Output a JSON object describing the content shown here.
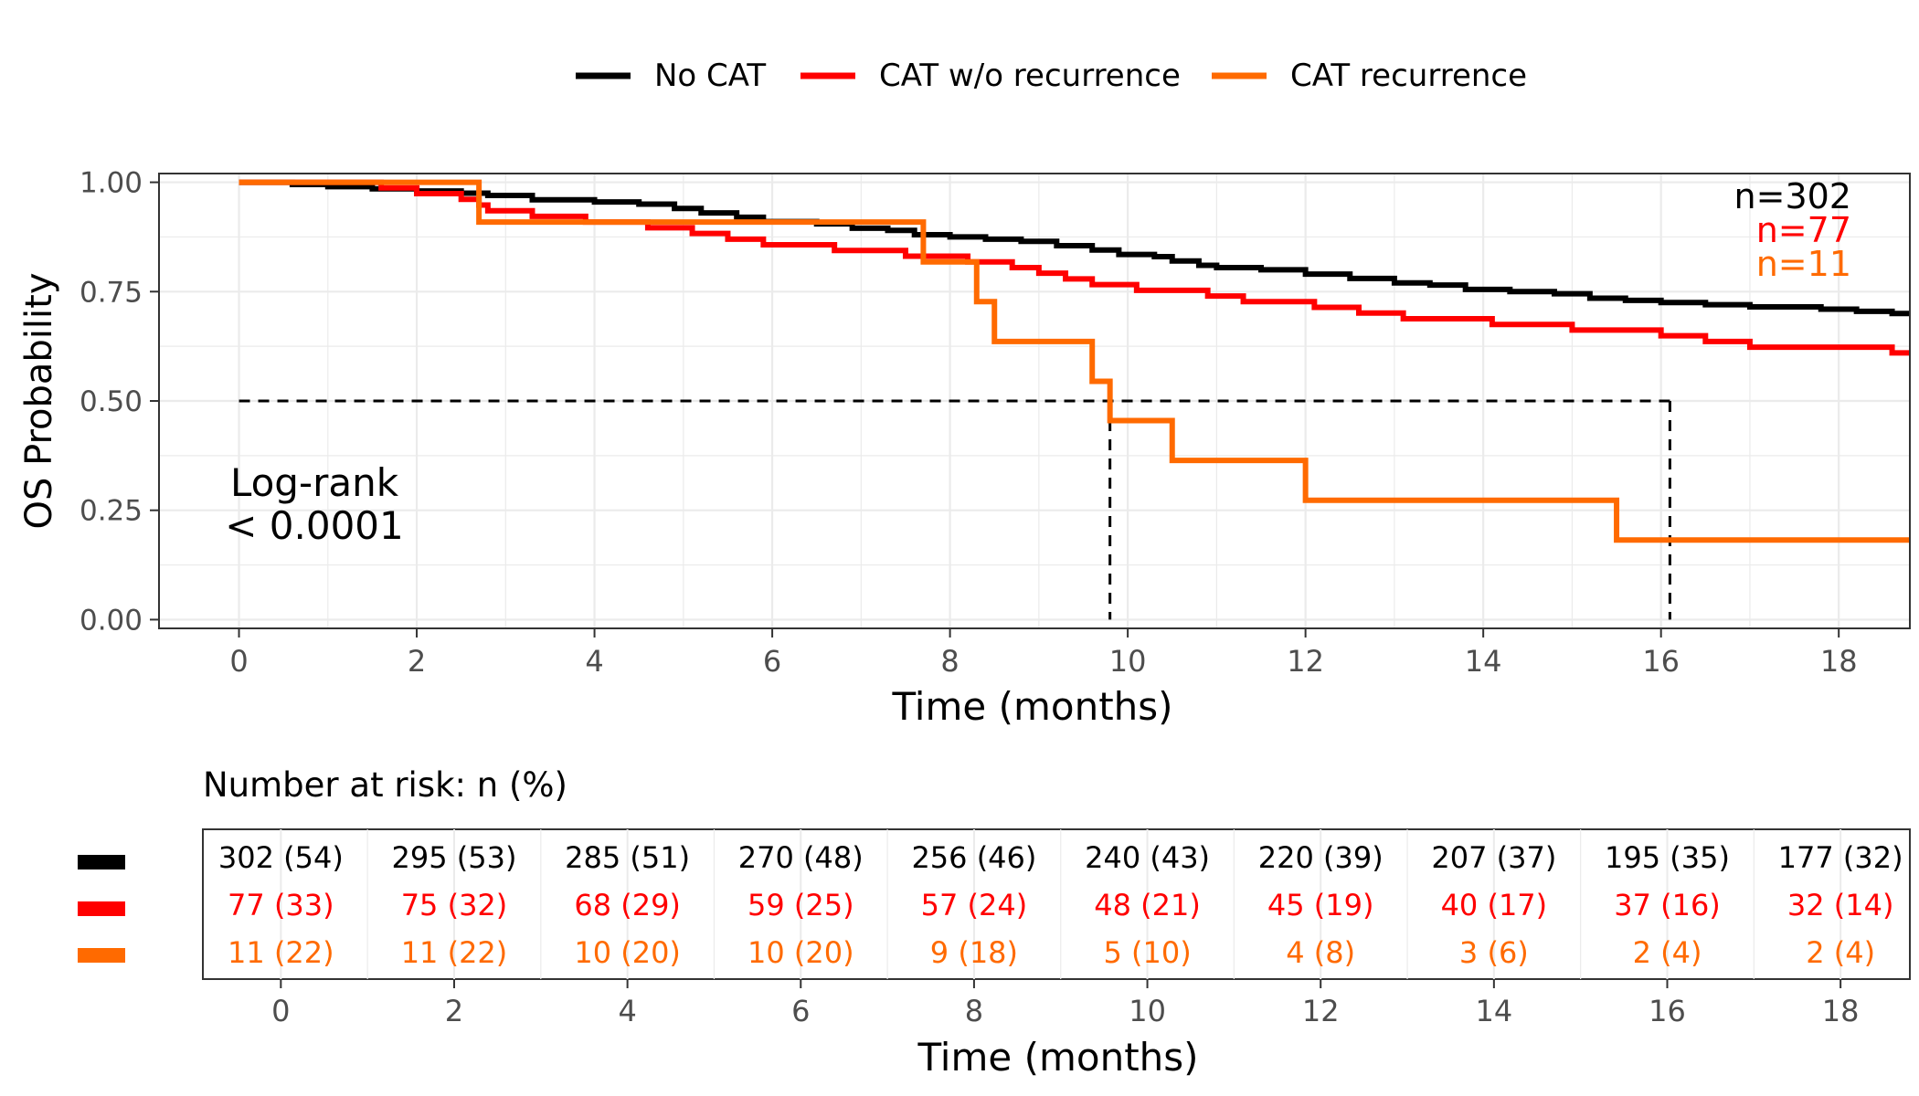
{
  "chart_data": {
    "type": "line",
    "subtype": "kaplan-meier",
    "xlabel": "Time (months)",
    "ylabel": "OS Probability",
    "xlim": [
      -0.9,
      18.8
    ],
    "ylim": [
      -0.02,
      1.02
    ],
    "x_ticks": [
      0,
      2,
      4,
      6,
      8,
      10,
      12,
      14,
      16,
      18
    ],
    "y_ticks": [
      0.0,
      0.25,
      0.5,
      0.75,
      1.0
    ],
    "y_tick_labels": [
      "0.00",
      "0.25",
      "0.50",
      "0.75",
      "1.00"
    ],
    "grid": true,
    "legend_position": "top",
    "series": [
      {
        "name": "No CAT",
        "color": "#000000",
        "n_label": "n=302",
        "steps": [
          [
            0,
            1.0
          ],
          [
            0.6,
            0.995
          ],
          [
            1.0,
            0.99
          ],
          [
            1.5,
            0.985
          ],
          [
            2.0,
            0.98
          ],
          [
            2.5,
            0.975
          ],
          [
            2.8,
            0.97
          ],
          [
            3.3,
            0.96
          ],
          [
            4.0,
            0.955
          ],
          [
            4.5,
            0.95
          ],
          [
            4.9,
            0.94
          ],
          [
            5.2,
            0.93
          ],
          [
            5.6,
            0.92
          ],
          [
            5.9,
            0.91
          ],
          [
            6.5,
            0.905
          ],
          [
            6.9,
            0.895
          ],
          [
            7.3,
            0.89
          ],
          [
            7.6,
            0.88
          ],
          [
            8.0,
            0.875
          ],
          [
            8.4,
            0.87
          ],
          [
            8.8,
            0.865
          ],
          [
            9.2,
            0.855
          ],
          [
            9.6,
            0.845
          ],
          [
            9.9,
            0.835
          ],
          [
            10.3,
            0.83
          ],
          [
            10.5,
            0.82
          ],
          [
            10.8,
            0.81
          ],
          [
            11.0,
            0.805
          ],
          [
            11.5,
            0.8
          ],
          [
            12.0,
            0.79
          ],
          [
            12.5,
            0.78
          ],
          [
            13.0,
            0.77
          ],
          [
            13.4,
            0.765
          ],
          [
            13.8,
            0.755
          ],
          [
            14.3,
            0.75
          ],
          [
            14.8,
            0.745
          ],
          [
            15.2,
            0.735
          ],
          [
            15.6,
            0.73
          ],
          [
            16.0,
            0.725
          ],
          [
            16.5,
            0.72
          ],
          [
            17.0,
            0.715
          ],
          [
            17.8,
            0.71
          ],
          [
            18.2,
            0.705
          ],
          [
            18.6,
            0.7
          ],
          [
            18.8,
            0.7
          ]
        ]
      },
      {
        "name": "CAT w/o recurrence",
        "color": "#ff0000",
        "n_label": "n=77",
        "steps": [
          [
            0,
            1.0
          ],
          [
            1.6,
            0.987
          ],
          [
            2.0,
            0.974
          ],
          [
            2.5,
            0.961
          ],
          [
            2.7,
            0.948
          ],
          [
            2.8,
            0.935
          ],
          [
            3.3,
            0.922
          ],
          [
            3.9,
            0.909
          ],
          [
            4.6,
            0.896
          ],
          [
            5.1,
            0.883
          ],
          [
            5.5,
            0.87
          ],
          [
            5.9,
            0.857
          ],
          [
            6.7,
            0.844
          ],
          [
            7.5,
            0.831
          ],
          [
            8.2,
            0.818
          ],
          [
            8.7,
            0.805
          ],
          [
            9.0,
            0.792
          ],
          [
            9.3,
            0.779
          ],
          [
            9.6,
            0.766
          ],
          [
            10.1,
            0.753
          ],
          [
            10.9,
            0.74
          ],
          [
            11.3,
            0.727
          ],
          [
            12.1,
            0.714
          ],
          [
            12.6,
            0.701
          ],
          [
            13.1,
            0.688
          ],
          [
            14.1,
            0.675
          ],
          [
            15.0,
            0.662
          ],
          [
            16.0,
            0.649
          ],
          [
            16.5,
            0.636
          ],
          [
            17.0,
            0.623
          ],
          [
            18.6,
            0.61
          ],
          [
            18.8,
            0.61
          ]
        ]
      },
      {
        "name": "CAT recurrence",
        "color": "#ff6a00",
        "n_label": "n=11",
        "steps": [
          [
            0,
            1.0
          ],
          [
            2.7,
            0.909
          ],
          [
            7.7,
            0.818
          ],
          [
            8.3,
            0.727
          ],
          [
            8.5,
            0.636
          ],
          [
            9.6,
            0.545
          ],
          [
            9.8,
            0.455
          ],
          [
            10.5,
            0.364
          ],
          [
            12.0,
            0.273
          ],
          [
            15.5,
            0.182
          ],
          [
            18.8,
            0.182
          ]
        ]
      }
    ],
    "median_lines": [
      {
        "x": 9.8,
        "y": 0.5
      },
      {
        "x": 16.1,
        "y": 0.5
      }
    ],
    "annotation": {
      "line1": "Log-rank",
      "line2": "< 0.0001"
    }
  },
  "risk_table": {
    "title": "Number at risk: n (%)",
    "xlabel": "Time (months)",
    "times": [
      0,
      2,
      4,
      6,
      8,
      10,
      12,
      14,
      16,
      18
    ],
    "rows": [
      {
        "color": "#000000",
        "values": [
          "302 (54)",
          "295 (53)",
          "285 (51)",
          "270 (48)",
          "256 (46)",
          "240 (43)",
          "220 (39)",
          "207 (37)",
          "195 (35)",
          "177 (32)"
        ]
      },
      {
        "color": "#ff0000",
        "values": [
          "77 (33)",
          "75 (32)",
          "68 (29)",
          "59 (25)",
          "57 (24)",
          "48 (21)",
          "45 (19)",
          "40 (17)",
          "37 (16)",
          "32 (14)"
        ]
      },
      {
        "color": "#ff6a00",
        "values": [
          "11 (22)",
          "11 (22)",
          "10 (20)",
          "10 (20)",
          "9 (18)",
          "5 (10)",
          "4 (8)",
          "3 (6)",
          "2 (4)",
          "2 (4)"
        ]
      }
    ]
  }
}
